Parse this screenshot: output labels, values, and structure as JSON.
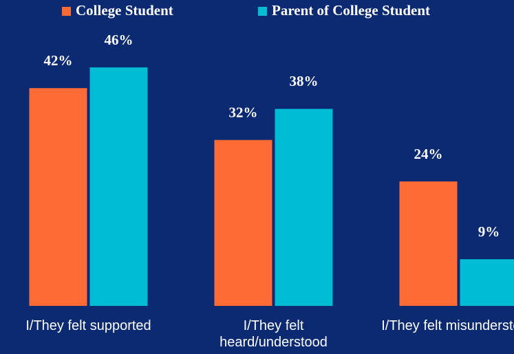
{
  "chart_data": {
    "type": "bar",
    "categories": [
      "I/They felt supported",
      "I/They felt heard/understood",
      "I/They felt misunderstood"
    ],
    "series": [
      {
        "name": "College Student",
        "color": "#ff6b35",
        "values": [
          42,
          32,
          24
        ],
        "value_labels": [
          "42%",
          "32%",
          "24%"
        ]
      },
      {
        "name": "Parent of College Student",
        "color": "#00bcd4",
        "values": [
          46,
          38,
          9
        ],
        "value_labels": [
          "46%",
          "38%",
          "9%"
        ]
      }
    ],
    "ylim": [
      0,
      59
    ],
    "legend": "top"
  }
}
